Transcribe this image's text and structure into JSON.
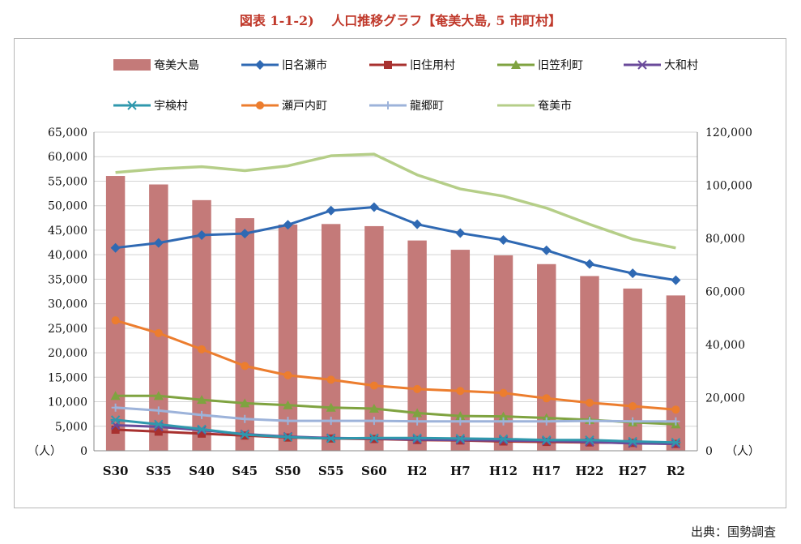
{
  "title": "図表 1-1-2)　 人口推移グラフ【奄美大島, 5 市町村】",
  "source": "出典：国勢調査",
  "chart_data": {
    "type": "bar+line",
    "categories": [
      "S30",
      "S35",
      "S40",
      "S45",
      "S50",
      "S55",
      "S60",
      "H2",
      "H7",
      "H12",
      "H17",
      "H22",
      "H27",
      "R2"
    ],
    "left_axis": {
      "ylim": [
        0,
        65000
      ],
      "ticks": [
        "0",
        "5,000",
        "10,000",
        "15,000",
        "20,000",
        "25,000",
        "30,000",
        "35,000",
        "40,000",
        "45,000",
        "50,000",
        "55,000",
        "60,000",
        "65,000"
      ],
      "unit_label": "（人）"
    },
    "right_axis": {
      "ylim": [
        0,
        120000
      ],
      "ticks": [
        "0",
        "20,000",
        "40,000",
        "60,000",
        "80,000",
        "100,000",
        "120,000"
      ],
      "unit_label": "（人）"
    },
    "grid": true,
    "legend_position": "top",
    "series": [
      {
        "name": "奄美大島",
        "kind": "bar",
        "axis": "right",
        "color": "#c47a79",
        "values": [
          103500,
          100300,
          94400,
          87600,
          85200,
          85400,
          84600,
          79200,
          75700,
          73600,
          70300,
          65800,
          61100,
          58500
        ]
      },
      {
        "name": "旧名瀬市",
        "kind": "line",
        "axis": "left",
        "color": "#2f69b3",
        "marker": "diamond",
        "values": [
          41400,
          42400,
          44000,
          44300,
          46100,
          49000,
          49700,
          46200,
          44400,
          43000,
          40900,
          38100,
          36200,
          34800
        ]
      },
      {
        "name": "旧住用村",
        "kind": "line",
        "axis": "left",
        "color": "#a8312f",
        "marker": "square",
        "values": [
          4300,
          3900,
          3500,
          3100,
          2700,
          2500,
          2400,
          2200,
          2100,
          1900,
          1800,
          1700,
          1600,
          1400
        ]
      },
      {
        "name": "旧笠利町",
        "kind": "line",
        "axis": "left",
        "color": "#7fa340",
        "marker": "triangle",
        "values": [
          11200,
          11200,
          10400,
          9700,
          9300,
          8800,
          8600,
          7700,
          7100,
          7000,
          6700,
          6300,
          5800,
          5400
        ]
      },
      {
        "name": "大和村",
        "kind": "line",
        "axis": "left",
        "color": "#6a4a9a",
        "marker": "x",
        "values": [
          5200,
          4900,
          4200,
          3400,
          2900,
          2600,
          2500,
          2300,
          2200,
          2100,
          2000,
          1800,
          1500,
          1400
        ]
      },
      {
        "name": "宇検村",
        "kind": "line",
        "axis": "left",
        "color": "#2f98ad",
        "marker": "star",
        "values": [
          6300,
          5400,
          4400,
          3300,
          2800,
          2500,
          2600,
          2600,
          2500,
          2400,
          2200,
          2200,
          1900,
          1700
        ]
      },
      {
        "name": "瀬戸内町",
        "kind": "line",
        "axis": "left",
        "color": "#ec7d2e",
        "marker": "circle",
        "values": [
          26600,
          24000,
          20700,
          17300,
          15400,
          14500,
          13300,
          12600,
          12200,
          11800,
          10700,
          9800,
          9100,
          8400
        ]
      },
      {
        "name": "龍郷町",
        "kind": "line",
        "axis": "left",
        "color": "#9db3da",
        "marker": "plus",
        "values": [
          8800,
          8200,
          7300,
          6500,
          6100,
          6100,
          6100,
          6000,
          6000,
          6000,
          6000,
          6100,
          6000,
          6000
        ]
      },
      {
        "name": "奄美市",
        "kind": "line",
        "axis": "right",
        "color": "#b5ce88",
        "marker": "none",
        "values": [
          104800,
          106200,
          107000,
          105500,
          107300,
          111100,
          111700,
          103900,
          98600,
          95900,
          91400,
          85300,
          79700,
          76400
        ]
      }
    ]
  }
}
